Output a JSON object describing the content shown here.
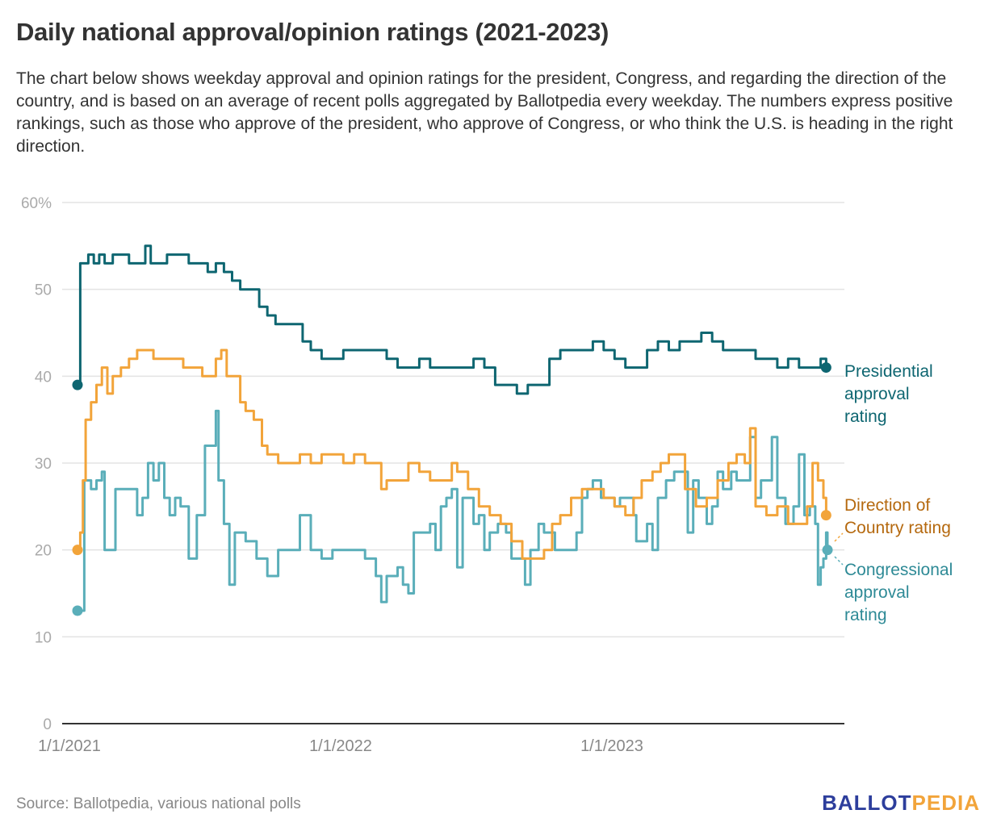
{
  "header": {
    "title": "Daily national approval/opinion ratings (2021-2023)",
    "description": "The chart below shows weekday approval and opinion ratings for the president, Congress, and regarding the direction of the country, and is based on an average of recent polls aggregated by Ballotpedia every weekday. The numbers express positive rankings, such as those who approve of the president, who approve of Congress, or who think the U.S. is heading in the right direction."
  },
  "footer": {
    "source": "Source: Ballotpedia, various national polls",
    "logo_part1": "BALLOT",
    "logo_part2": "PEDIA"
  },
  "chart_data": {
    "type": "line",
    "title": "Daily national approval/opinion ratings (2021-2023)",
    "xlabel": "",
    "ylabel": "",
    "ylim": [
      0,
      60
    ],
    "xlim": [
      2020.94,
      2023.8
    ],
    "yticks": [
      0,
      10,
      20,
      30,
      40,
      50,
      60
    ],
    "ytick_labels": [
      "0",
      "10",
      "20",
      "30",
      "40",
      "50",
      "60%"
    ],
    "xticks": [
      2021.0,
      2022.0,
      2023.0
    ],
    "xtick_labels": [
      "1/1/2021",
      "1/1/2022",
      "1/1/2023"
    ],
    "grid": true,
    "legend": "right-end labels",
    "series": [
      {
        "name": "Presidential approval rating",
        "label_lines": [
          "Presidential",
          "approval",
          "rating"
        ],
        "color": "#0e6671",
        "label_color": "#0e6671",
        "end_value": 41,
        "points": [
          [
            2021.0,
            39
          ],
          [
            2021.01,
            53
          ],
          [
            2021.03,
            53
          ],
          [
            2021.04,
            54
          ],
          [
            2021.06,
            53
          ],
          [
            2021.08,
            54
          ],
          [
            2021.1,
            53
          ],
          [
            2021.13,
            54
          ],
          [
            2021.16,
            54
          ],
          [
            2021.19,
            53
          ],
          [
            2021.22,
            53
          ],
          [
            2021.25,
            55
          ],
          [
            2021.27,
            53
          ],
          [
            2021.3,
            53
          ],
          [
            2021.33,
            54
          ],
          [
            2021.36,
            54
          ],
          [
            2021.39,
            54
          ],
          [
            2021.41,
            53
          ],
          [
            2021.45,
            53
          ],
          [
            2021.48,
            52
          ],
          [
            2021.51,
            53
          ],
          [
            2021.54,
            52
          ],
          [
            2021.57,
            51
          ],
          [
            2021.6,
            50
          ],
          [
            2021.64,
            50
          ],
          [
            2021.67,
            48
          ],
          [
            2021.7,
            47
          ],
          [
            2021.73,
            46
          ],
          [
            2021.76,
            46
          ],
          [
            2021.79,
            46
          ],
          [
            2021.83,
            44
          ],
          [
            2021.86,
            43
          ],
          [
            2021.9,
            42
          ],
          [
            2021.94,
            42
          ],
          [
            2021.98,
            43
          ],
          [
            2022.02,
            43
          ],
          [
            2022.07,
            43
          ],
          [
            2022.11,
            43
          ],
          [
            2022.14,
            42
          ],
          [
            2022.18,
            41
          ],
          [
            2022.22,
            41
          ],
          [
            2022.26,
            42
          ],
          [
            2022.3,
            41
          ],
          [
            2022.34,
            41
          ],
          [
            2022.38,
            41
          ],
          [
            2022.42,
            41
          ],
          [
            2022.46,
            42
          ],
          [
            2022.5,
            41
          ],
          [
            2022.54,
            39
          ],
          [
            2022.58,
            39
          ],
          [
            2022.62,
            38
          ],
          [
            2022.66,
            39
          ],
          [
            2022.7,
            39
          ],
          [
            2022.74,
            42
          ],
          [
            2022.78,
            43
          ],
          [
            2022.86,
            43
          ],
          [
            2022.9,
            44
          ],
          [
            2022.94,
            43
          ],
          [
            2022.98,
            42
          ],
          [
            2023.02,
            41
          ],
          [
            2023.06,
            41
          ],
          [
            2023.1,
            43
          ],
          [
            2023.14,
            44
          ],
          [
            2023.18,
            43
          ],
          [
            2023.22,
            44
          ],
          [
            2023.26,
            44
          ],
          [
            2023.3,
            45
          ],
          [
            2023.34,
            44
          ],
          [
            2023.38,
            43
          ],
          [
            2023.46,
            43
          ],
          [
            2023.5,
            42
          ],
          [
            2023.54,
            42
          ],
          [
            2023.58,
            41
          ],
          [
            2023.62,
            42
          ],
          [
            2023.66,
            41
          ],
          [
            2023.7,
            41
          ],
          [
            2023.74,
            42
          ],
          [
            2023.76,
            41
          ]
        ]
      },
      {
        "name": "Direction of Country rating",
        "label_lines": [
          "Direction of",
          "Country rating"
        ],
        "color": "#f2a43a",
        "label_color": "#b5690f",
        "end_value": 24,
        "points": [
          [
            2021.0,
            20
          ],
          [
            2021.01,
            22
          ],
          [
            2021.02,
            28
          ],
          [
            2021.03,
            35
          ],
          [
            2021.05,
            37
          ],
          [
            2021.07,
            39
          ],
          [
            2021.09,
            41
          ],
          [
            2021.11,
            38
          ],
          [
            2021.13,
            40
          ],
          [
            2021.16,
            41
          ],
          [
            2021.19,
            42
          ],
          [
            2021.22,
            43
          ],
          [
            2021.25,
            43
          ],
          [
            2021.28,
            42
          ],
          [
            2021.32,
            42
          ],
          [
            2021.36,
            42
          ],
          [
            2021.39,
            41
          ],
          [
            2021.43,
            41
          ],
          [
            2021.46,
            40
          ],
          [
            2021.49,
            40
          ],
          [
            2021.51,
            42
          ],
          [
            2021.53,
            43
          ],
          [
            2021.55,
            40
          ],
          [
            2021.57,
            40
          ],
          [
            2021.6,
            37
          ],
          [
            2021.62,
            36
          ],
          [
            2021.65,
            35
          ],
          [
            2021.68,
            32
          ],
          [
            2021.7,
            31
          ],
          [
            2021.74,
            30
          ],
          [
            2021.78,
            30
          ],
          [
            2021.82,
            31
          ],
          [
            2021.86,
            30
          ],
          [
            2021.9,
            31
          ],
          [
            2021.94,
            31
          ],
          [
            2021.98,
            30
          ],
          [
            2022.02,
            31
          ],
          [
            2022.06,
            30
          ],
          [
            2022.1,
            30
          ],
          [
            2022.12,
            27
          ],
          [
            2022.14,
            28
          ],
          [
            2022.18,
            28
          ],
          [
            2022.22,
            30
          ],
          [
            2022.26,
            29
          ],
          [
            2022.3,
            28
          ],
          [
            2022.34,
            28
          ],
          [
            2022.38,
            30
          ],
          [
            2022.4,
            29
          ],
          [
            2022.44,
            27
          ],
          [
            2022.48,
            25
          ],
          [
            2022.52,
            24
          ],
          [
            2022.56,
            23
          ],
          [
            2022.6,
            21
          ],
          [
            2022.64,
            19
          ],
          [
            2022.68,
            19
          ],
          [
            2022.72,
            20
          ],
          [
            2022.75,
            23
          ],
          [
            2022.78,
            24
          ],
          [
            2022.82,
            26
          ],
          [
            2022.86,
            27
          ],
          [
            2022.9,
            27
          ],
          [
            2022.94,
            26
          ],
          [
            2022.98,
            25
          ],
          [
            2023.02,
            24
          ],
          [
            2023.05,
            26
          ],
          [
            2023.08,
            28
          ],
          [
            2023.12,
            29
          ],
          [
            2023.15,
            30
          ],
          [
            2023.18,
            31
          ],
          [
            2023.21,
            31
          ],
          [
            2023.24,
            27
          ],
          [
            2023.28,
            25
          ],
          [
            2023.32,
            26
          ],
          [
            2023.36,
            28
          ],
          [
            2023.4,
            30
          ],
          [
            2023.43,
            31
          ],
          [
            2023.46,
            30
          ],
          [
            2023.48,
            34
          ],
          [
            2023.5,
            25
          ],
          [
            2023.54,
            24
          ],
          [
            2023.58,
            25
          ],
          [
            2023.62,
            23
          ],
          [
            2023.66,
            23
          ],
          [
            2023.69,
            25
          ],
          [
            2023.71,
            30
          ],
          [
            2023.73,
            28
          ],
          [
            2023.75,
            26
          ],
          [
            2023.76,
            24
          ]
        ]
      },
      {
        "name": "Congressional approval rating",
        "label_lines": [
          "Congressional",
          "approval",
          "rating"
        ],
        "color": "#5aaeb9",
        "label_color": "#2e8a96",
        "end_value": 20,
        "points": [
          [
            2021.0,
            13
          ],
          [
            2021.02,
            13
          ],
          [
            2021.025,
            28
          ],
          [
            2021.05,
            27
          ],
          [
            2021.07,
            28
          ],
          [
            2021.09,
            29
          ],
          [
            2021.1,
            20
          ],
          [
            2021.12,
            20
          ],
          [
            2021.14,
            27
          ],
          [
            2021.2,
            27
          ],
          [
            2021.22,
            24
          ],
          [
            2021.24,
            26
          ],
          [
            2021.26,
            30
          ],
          [
            2021.28,
            28
          ],
          [
            2021.3,
            30
          ],
          [
            2021.32,
            26
          ],
          [
            2021.34,
            24
          ],
          [
            2021.36,
            26
          ],
          [
            2021.38,
            25
          ],
          [
            2021.41,
            19
          ],
          [
            2021.44,
            24
          ],
          [
            2021.47,
            32
          ],
          [
            2021.5,
            32
          ],
          [
            2021.51,
            36
          ],
          [
            2021.52,
            28
          ],
          [
            2021.54,
            23
          ],
          [
            2021.56,
            16
          ],
          [
            2021.58,
            22
          ],
          [
            2021.62,
            21
          ],
          [
            2021.66,
            19
          ],
          [
            2021.7,
            17
          ],
          [
            2021.74,
            20
          ],
          [
            2021.78,
            20
          ],
          [
            2021.82,
            24
          ],
          [
            2021.86,
            20
          ],
          [
            2021.9,
            19
          ],
          [
            2021.94,
            20
          ],
          [
            2021.98,
            20
          ],
          [
            2022.02,
            20
          ],
          [
            2022.06,
            19
          ],
          [
            2022.1,
            17
          ],
          [
            2022.12,
            14
          ],
          [
            2022.14,
            17
          ],
          [
            2022.18,
            18
          ],
          [
            2022.2,
            16
          ],
          [
            2022.22,
            15
          ],
          [
            2022.24,
            22
          ],
          [
            2022.28,
            22
          ],
          [
            2022.3,
            23
          ],
          [
            2022.32,
            20
          ],
          [
            2022.34,
            25
          ],
          [
            2022.36,
            26
          ],
          [
            2022.38,
            27
          ],
          [
            2022.4,
            18
          ],
          [
            2022.42,
            26
          ],
          [
            2022.44,
            26
          ],
          [
            2022.46,
            23
          ],
          [
            2022.48,
            24
          ],
          [
            2022.5,
            20
          ],
          [
            2022.52,
            22
          ],
          [
            2022.55,
            23
          ],
          [
            2022.58,
            22
          ],
          [
            2022.6,
            19
          ],
          [
            2022.63,
            19
          ],
          [
            2022.65,
            16
          ],
          [
            2022.67,
            20
          ],
          [
            2022.7,
            23
          ],
          [
            2022.72,
            22
          ],
          [
            2022.76,
            20
          ],
          [
            2022.8,
            20
          ],
          [
            2022.84,
            22
          ],
          [
            2022.86,
            26
          ],
          [
            2022.88,
            27
          ],
          [
            2022.9,
            28
          ],
          [
            2022.93,
            26
          ],
          [
            2022.96,
            26
          ],
          [
            2022.98,
            25
          ],
          [
            2023.0,
            26
          ],
          [
            2023.03,
            26
          ],
          [
            2023.05,
            24
          ],
          [
            2023.06,
            21
          ],
          [
            2023.08,
            21
          ],
          [
            2023.1,
            23
          ],
          [
            2023.12,
            20
          ],
          [
            2023.14,
            26
          ],
          [
            2023.17,
            28
          ],
          [
            2023.2,
            29
          ],
          [
            2023.23,
            29
          ],
          [
            2023.25,
            22
          ],
          [
            2023.27,
            28
          ],
          [
            2023.29,
            26
          ],
          [
            2023.32,
            23
          ],
          [
            2023.34,
            25
          ],
          [
            2023.36,
            29
          ],
          [
            2023.38,
            27
          ],
          [
            2023.41,
            29
          ],
          [
            2023.43,
            28
          ],
          [
            2023.46,
            28
          ],
          [
            2023.48,
            33
          ],
          [
            2023.5,
            26
          ],
          [
            2023.52,
            28
          ],
          [
            2023.54,
            28
          ],
          [
            2023.56,
            33
          ],
          [
            2023.58,
            26
          ],
          [
            2023.61,
            23
          ],
          [
            2023.64,
            25
          ],
          [
            2023.66,
            31
          ],
          [
            2023.68,
            24
          ],
          [
            2023.7,
            25
          ],
          [
            2023.72,
            23
          ],
          [
            2023.73,
            16
          ],
          [
            2023.74,
            18
          ],
          [
            2023.75,
            19
          ],
          [
            2023.76,
            22
          ],
          [
            2023.765,
            20
          ]
        ]
      }
    ]
  }
}
